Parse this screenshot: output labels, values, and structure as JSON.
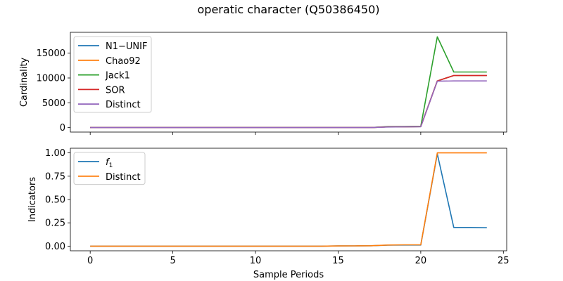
{
  "figure": {
    "title": "operatic character (Q50386450)"
  },
  "chart_data": [
    {
      "type": "line",
      "ylabel": "Cardinality",
      "xlabel": "",
      "xlim": [
        -1.2,
        25.2
      ],
      "ylim": [
        -900,
        19200
      ],
      "xticks": [
        0,
        5,
        10,
        15,
        20,
        25
      ],
      "yticks": [
        0,
        5000,
        10000,
        15000
      ],
      "ytick_labels": [
        "0",
        "5000",
        "10000",
        "15000"
      ],
      "xtick_labels_visible": false,
      "legend_position": "upper-left",
      "x": [
        0,
        1,
        2,
        3,
        4,
        5,
        6,
        7,
        8,
        9,
        10,
        11,
        12,
        13,
        14,
        15,
        16,
        17,
        18,
        19,
        20,
        21,
        22,
        23,
        24
      ],
      "series": [
        {
          "name": "N1−UNIF",
          "color": "#1f77b4",
          "values": [
            0,
            0,
            0,
            0,
            0,
            0,
            0,
            0,
            0,
            0,
            0,
            0,
            0,
            0,
            0,
            0,
            0,
            0,
            150,
            180,
            200,
            9400,
            10500,
            10500,
            10500
          ]
        },
        {
          "name": "Chao92",
          "color": "#ff7f0e",
          "values": [
            0,
            0,
            0,
            0,
            0,
            0,
            0,
            0,
            0,
            0,
            0,
            0,
            0,
            0,
            0,
            0,
            0,
            0,
            150,
            180,
            200,
            9400,
            10500,
            10500,
            10500
          ]
        },
        {
          "name": "Jack1",
          "color": "#2ca02c",
          "values": [
            0,
            0,
            0,
            0,
            0,
            0,
            0,
            0,
            0,
            0,
            0,
            0,
            0,
            0,
            0,
            0,
            0,
            0,
            200,
            230,
            260,
            18300,
            11200,
            11200,
            11200
          ]
        },
        {
          "name": "SOR",
          "color": "#d62728",
          "values": [
            0,
            0,
            0,
            0,
            0,
            0,
            0,
            0,
            0,
            0,
            0,
            0,
            0,
            0,
            0,
            0,
            0,
            0,
            150,
            180,
            200,
            9400,
            10500,
            10500,
            10500
          ]
        },
        {
          "name": "Distinct",
          "color": "#9467bd",
          "values": [
            0,
            0,
            0,
            0,
            0,
            0,
            0,
            0,
            0,
            0,
            0,
            0,
            0,
            0,
            0,
            0,
            0,
            0,
            120,
            150,
            180,
            9350,
            9400,
            9400,
            9400
          ]
        }
      ]
    },
    {
      "type": "line",
      "ylabel": "Indicators",
      "xlabel": "Sample Periods",
      "xlim": [
        -1.2,
        25.2
      ],
      "ylim": [
        -0.05,
        1.05
      ],
      "xticks": [
        0,
        5,
        10,
        15,
        20,
        25
      ],
      "xtick_labels": [
        "0",
        "5",
        "10",
        "15",
        "20",
        "25"
      ],
      "yticks": [
        0,
        0.25,
        0.5,
        0.75,
        1.0
      ],
      "ytick_labels": [
        "0.00",
        "0.25",
        "0.50",
        "0.75",
        "1.00"
      ],
      "legend_position": "upper-left",
      "x": [
        0,
        1,
        2,
        3,
        4,
        5,
        6,
        7,
        8,
        9,
        10,
        11,
        12,
        13,
        14,
        15,
        16,
        17,
        18,
        19,
        20,
        21,
        22,
        23,
        24
      ],
      "series": [
        {
          "name": "f",
          "name_sub": "1",
          "color": "#1f77b4",
          "values": [
            0,
            0,
            0,
            0,
            0,
            0,
            0,
            0,
            0,
            0,
            0,
            0,
            0,
            0,
            0,
            0.002,
            0.003,
            0.004,
            0.01,
            0.012,
            0.012,
            0.99,
            0.2,
            0.2,
            0.197
          ]
        },
        {
          "name": "Distinct",
          "color": "#ff7f0e",
          "values": [
            0,
            0,
            0,
            0,
            0,
            0,
            0,
            0,
            0,
            0,
            0,
            0,
            0,
            0,
            0,
            0.002,
            0.003,
            0.004,
            0.012,
            0.014,
            0.014,
            1.0,
            1.0,
            1.0,
            1.0
          ]
        }
      ]
    }
  ]
}
